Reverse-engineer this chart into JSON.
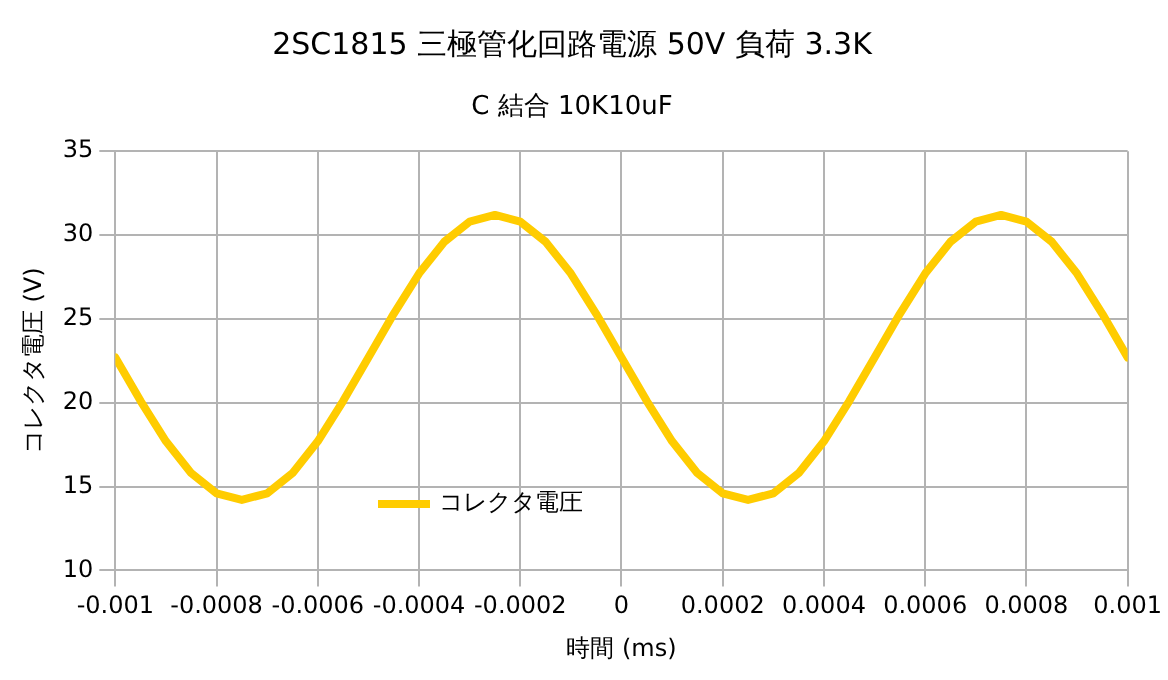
{
  "chart_data": {
    "type": "line",
    "title": "2SC1815 三極管化回路電源 50V 負荷 3.3K",
    "subtitle": "C 結合 10K10uF",
    "xlabel": "時間 (ms)",
    "ylabel": "コレクタ電圧 (V)",
    "x": [
      -0.001,
      -0.00095,
      -0.0009,
      -0.00085,
      -0.0008,
      -0.00075,
      -0.0007,
      -0.00065,
      -0.0006,
      -0.00055,
      -0.0005,
      -0.00045,
      -0.0004,
      -0.00035,
      -0.0003,
      -0.00025,
      -0.0002,
      -0.00015,
      -0.0001,
      -5e-05,
      0,
      5e-05,
      0.0001,
      0.00015,
      0.0002,
      0.00025,
      0.0003,
      0.00035,
      0.0004,
      0.00045,
      0.0005,
      0.00055,
      0.0006,
      0.00065,
      0.0007,
      0.00075,
      0.0008,
      0.00085,
      0.0009,
      0.00095,
      0.001
    ],
    "series": [
      {
        "name": "コレクタ電圧",
        "color": "#ffcc00",
        "values": [
          22.7,
          20.1,
          17.7,
          15.8,
          14.6,
          14.2,
          14.6,
          15.8,
          17.7,
          20.1,
          22.7,
          25.3,
          27.7,
          29.6,
          30.8,
          31.2,
          30.8,
          29.6,
          27.7,
          25.3,
          22.7,
          20.1,
          17.7,
          15.8,
          14.6,
          14.2,
          14.6,
          15.8,
          17.7,
          20.1,
          22.7,
          25.3,
          27.7,
          29.6,
          30.8,
          31.2,
          30.8,
          29.6,
          27.7,
          25.3,
          22.7
        ]
      }
    ],
    "xlim": [
      -0.001,
      0.001
    ],
    "xticks": [
      -0.001,
      -0.0008,
      -0.0006,
      -0.0004,
      -0.0002,
      0,
      0.0002,
      0.0004,
      0.0006,
      0.0008,
      0.001
    ],
    "ylim": [
      10,
      35
    ],
    "yticks": [
      10,
      15,
      20,
      25,
      30,
      35
    ],
    "grid": true,
    "legend": "bottom left",
    "marker": "none",
    "line_style": "solid"
  }
}
